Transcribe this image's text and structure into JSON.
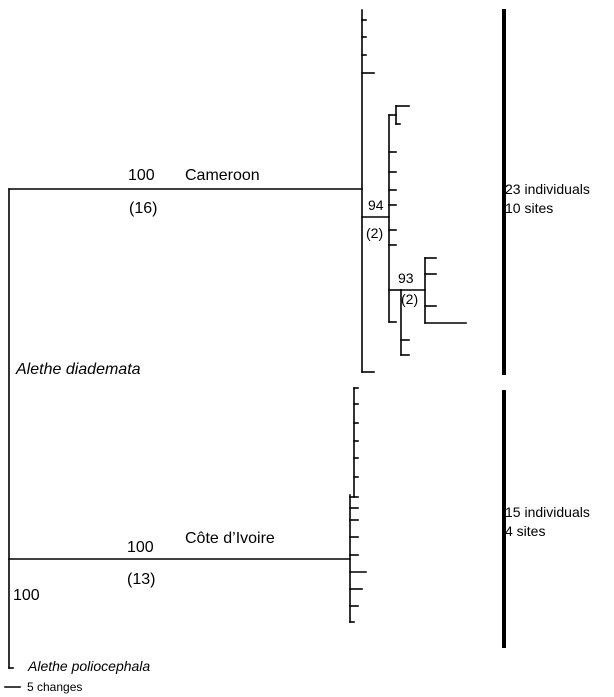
{
  "labels": {
    "cameroon": "Cameroon",
    "cameroon_bootstrap": "100",
    "cameroon_changes": "(16)",
    "cameroon_sub1_bootstrap": "94",
    "cameroon_sub1_changes": "(2)",
    "cameroon_sub2_bootstrap": "93",
    "cameroon_sub2_changes": "(2)",
    "cameroon_sample_line1": "23 individuals",
    "cameroon_sample_line2": "10 sites",
    "species_diademata": "Alethe diademata",
    "cote": "Côte d’Ivoire",
    "cote_bootstrap": "100",
    "cote_changes": "(13)",
    "cote_sample_line1": "15 individuals",
    "cote_sample_line2": "4 sites",
    "root_bootstrap": "100",
    "outgroup": "Alethe poliocephala",
    "scale_label": "5 changes"
  }
}
